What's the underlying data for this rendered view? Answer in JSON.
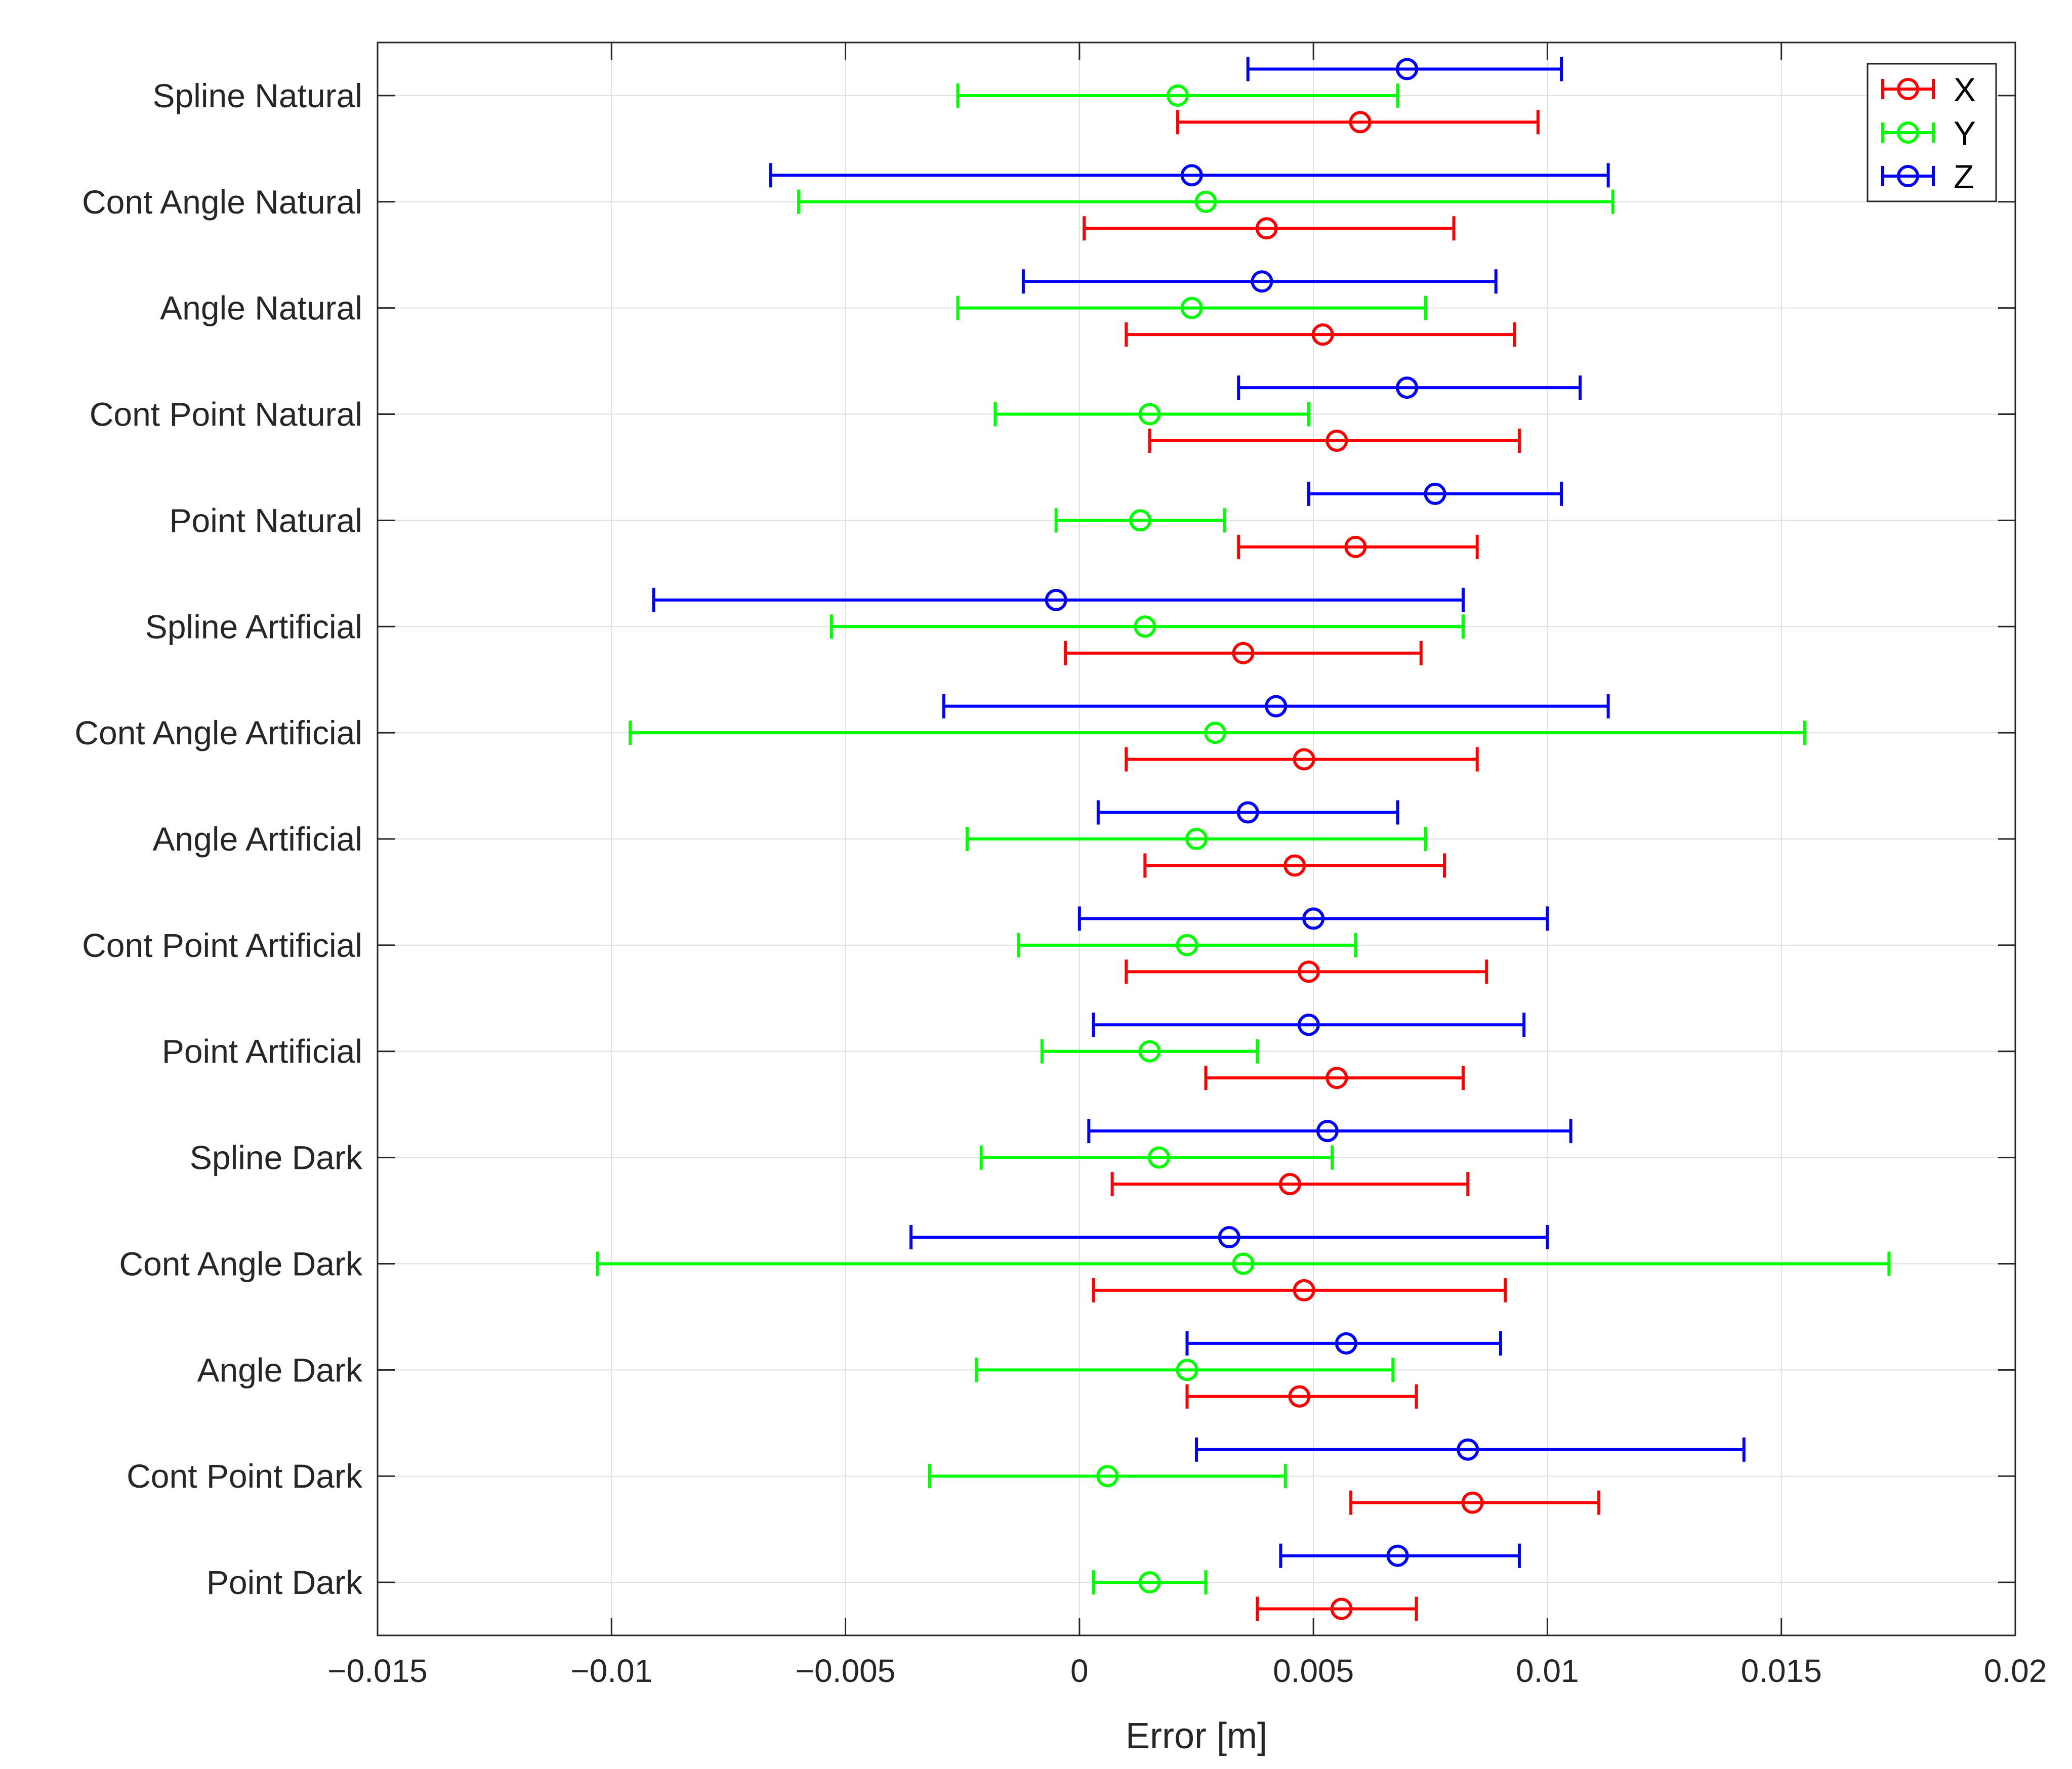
{
  "chart_data": {
    "type": "errorbar",
    "title": "",
    "xlabel": "Error [m]",
    "ylabel": "",
    "xlim": [
      -0.015,
      0.02
    ],
    "xticks": [
      -0.015,
      -0.01,
      -0.005,
      0,
      0.005,
      0.01,
      0.015,
      0.02
    ],
    "xtick_labels": [
      "−0.015",
      "−0.01",
      "−0.005",
      "0",
      "0.005",
      "0.01",
      "0.015",
      "0.02"
    ],
    "grid": true,
    "legend_position": "top-right",
    "categories": [
      "Spline  Natural",
      "Cont Angle  Natural",
      "Angle  Natural",
      "Cont Point  Natural",
      "Point Natural",
      "Spline Artificial",
      "Cont Angle Artificial",
      "Angle Artificial",
      "Cont Point Artificial",
      "Point Artificial",
      "Spline Dark",
      "Cont Angle Dark",
      "Angle Dark",
      "Cont Point Dark",
      "Point Dark"
    ],
    "series": [
      {
        "name": "X",
        "color": "#ff0000",
        "mean": [
          0.006,
          0.004,
          0.0052,
          0.0055,
          0.0059,
          0.0035,
          0.0048,
          0.0046,
          0.0049,
          0.0055,
          0.0045,
          0.0048,
          0.0047,
          0.0084,
          0.0056
        ],
        "lower": [
          0.0021,
          0.0001,
          0.001,
          0.0015,
          0.0034,
          -0.0003,
          0.001,
          0.0014,
          0.001,
          0.0027,
          0.0007,
          0.0003,
          0.0023,
          0.0058,
          0.0038
        ],
        "upper": [
          0.0098,
          0.008,
          0.0093,
          0.0094,
          0.0085,
          0.0073,
          0.0085,
          0.0078,
          0.0087,
          0.0082,
          0.0083,
          0.0091,
          0.0072,
          0.0111,
          0.0072
        ]
      },
      {
        "name": "Y",
        "color": "#00ff00",
        "mean": [
          0.0021,
          0.0027,
          0.0024,
          0.0015,
          0.0013,
          0.0014,
          0.0029,
          0.0025,
          0.0023,
          0.0015,
          0.0017,
          0.0035,
          0.0023,
          0.0006,
          0.0015
        ],
        "lower": [
          -0.0026,
          -0.006,
          -0.0026,
          -0.0018,
          -0.0005,
          -0.0053,
          -0.0096,
          -0.0024,
          -0.0013,
          -0.0008,
          -0.0021,
          -0.0103,
          -0.0022,
          -0.0032,
          0.0003
        ],
        "upper": [
          0.0068,
          0.0114,
          0.0074,
          0.0049,
          0.0031,
          0.0082,
          0.0155,
          0.0074,
          0.0059,
          0.0038,
          0.0054,
          0.0173,
          0.0067,
          0.0044,
          0.0027
        ]
      },
      {
        "name": "Z",
        "color": "#0000ff",
        "mean": [
          0.007,
          0.0024,
          0.0039,
          0.007,
          0.0076,
          -0.0005,
          0.0042,
          0.0036,
          0.005,
          0.0049,
          0.0053,
          0.0032,
          0.0057,
          0.0083,
          0.0068
        ],
        "lower": [
          0.0036,
          -0.0066,
          -0.0012,
          0.0034,
          0.0049,
          -0.0091,
          -0.0029,
          0.0004,
          0.0,
          0.0003,
          0.0002,
          -0.0036,
          0.0023,
          0.0025,
          0.0043
        ],
        "upper": [
          0.0103,
          0.0113,
          0.0089,
          0.0107,
          0.0103,
          0.0082,
          0.0113,
          0.0068,
          0.01,
          0.0095,
          0.0105,
          0.01,
          0.009,
          0.0142,
          0.0094
        ]
      }
    ]
  }
}
